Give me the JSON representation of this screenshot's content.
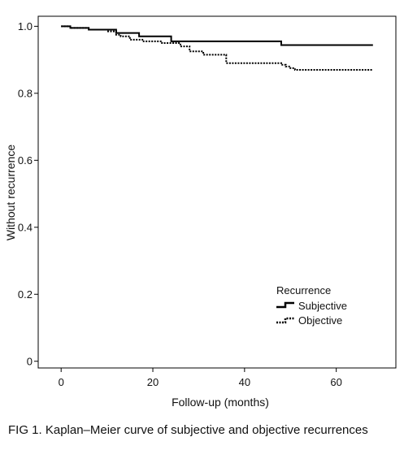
{
  "caption": "FIG 1. Kaplan–Meier curve of subjective and objective recurrences",
  "chart_data": {
    "type": "line",
    "step": true,
    "xlabel": "Follow-up (months)",
    "ylabel": "Without recurrence",
    "xlim": [
      -5,
      73
    ],
    "ylim": [
      -0.02,
      1.03
    ],
    "x_ticks": [
      0,
      20,
      40,
      60
    ],
    "x_tick_labels": [
      "0",
      "20",
      "40",
      "60"
    ],
    "y_ticks": [
      0,
      0.2,
      0.4,
      0.6,
      0.8,
      1.0
    ],
    "y_tick_labels": [
      "0",
      "0.2",
      "0.4",
      "0.6",
      "0.8",
      "1.0"
    ],
    "grid": false,
    "legend": {
      "title": "Recurrence",
      "position": "bottom-right",
      "entries": [
        "Subjective",
        "Objective"
      ]
    },
    "series": [
      {
        "name": "Subjective",
        "style": "solid",
        "color": "#000000",
        "x": [
          0,
          2,
          6,
          12,
          17,
          24,
          48,
          68
        ],
        "y": [
          1.0,
          0.995,
          0.99,
          0.98,
          0.97,
          0.955,
          0.944,
          0.944
        ]
      },
      {
        "name": "Objective",
        "style": "dotted",
        "color": "#000000",
        "x": [
          0,
          2,
          6,
          10,
          12,
          13,
          15,
          18,
          22,
          26,
          28,
          31,
          36,
          48,
          49,
          50,
          51,
          68
        ],
        "y": [
          1.0,
          0.995,
          0.99,
          0.985,
          0.975,
          0.97,
          0.96,
          0.955,
          0.95,
          0.94,
          0.925,
          0.915,
          0.89,
          0.885,
          0.88,
          0.875,
          0.87,
          0.87
        ]
      }
    ]
  }
}
